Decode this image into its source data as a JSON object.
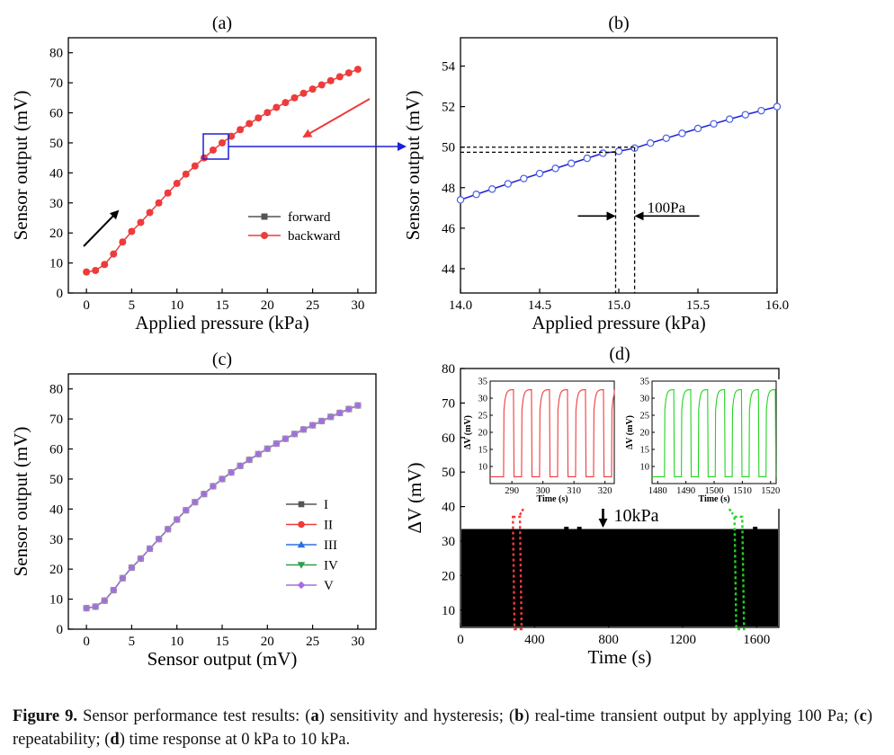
{
  "caption": {
    "label": "Figure 9.",
    "intro": " Sensor performance test results: (",
    "a_letter": "a",
    "a_text": ") sensitivity and hysteresis; (",
    "b_letter": "b",
    "b_text": ") real-time transient output by applying 100 Pa; (",
    "c_letter": "c",
    "c_text": ") repeatability; (",
    "d_letter": "d",
    "d_text": ") time response at 0 kPa to 10 kPa."
  },
  "colors": {
    "red": "#ee3b3b",
    "dark": "#4a4a4a",
    "blue": "#1f1fd8",
    "circle_blue": "#4a5fe0",
    "purple": "#a36fe0",
    "green": "#22d322",
    "black": "#000000"
  },
  "chart_data": [
    {
      "panel": "(a)",
      "type": "line",
      "xlabel": "Applied pressure (kPa)",
      "ylabel": "Sensor output (mV)",
      "xlim": [
        -2,
        32
      ],
      "ylim": [
        0,
        85
      ],
      "xticks": [
        0,
        5,
        10,
        15,
        20,
        25,
        30
      ],
      "yticks": [
        0,
        10,
        20,
        30,
        40,
        50,
        60,
        70,
        80
      ],
      "legend_position": "center-right",
      "series": [
        {
          "name": "forward",
          "marker": "square",
          "color": "#555555",
          "x": [
            0,
            1,
            2,
            3,
            4,
            5,
            6,
            7,
            8,
            9,
            10,
            11,
            12,
            13,
            14,
            15,
            16,
            17,
            18,
            19,
            20,
            21,
            22,
            23,
            24,
            25,
            26,
            27,
            28,
            29,
            30
          ],
          "y": [
            7,
            7.5,
            9.5,
            13,
            17,
            20.5,
            23.5,
            26.8,
            30,
            33.3,
            36.5,
            39.6,
            42.3,
            45,
            47.6,
            50,
            52.2,
            54.4,
            56.4,
            58.3,
            60.1,
            61.8,
            63.4,
            65,
            66.5,
            67.9,
            69.3,
            70.7,
            72,
            73.3,
            74.5
          ]
        },
        {
          "name": "backward",
          "marker": "circle",
          "color": "#ee3b3b",
          "x": [
            0,
            1,
            2,
            3,
            4,
            5,
            6,
            7,
            8,
            9,
            10,
            11,
            12,
            13,
            14,
            15,
            16,
            17,
            18,
            19,
            20,
            21,
            22,
            23,
            24,
            25,
            26,
            27,
            28,
            29,
            30
          ],
          "y": [
            7,
            7.5,
            9.5,
            13,
            17,
            20.5,
            23.5,
            26.8,
            30,
            33.3,
            36.5,
            39.6,
            42.3,
            45,
            47.6,
            50,
            52.2,
            54.4,
            56.4,
            58.3,
            60.1,
            61.8,
            63.4,
            65,
            66.5,
            67.9,
            69.3,
            70.7,
            72,
            73.3,
            74.5
          ]
        }
      ],
      "annotations": []
    },
    {
      "panel": "(b)",
      "type": "line",
      "xlabel": "Applied pressure (kPa)",
      "ylabel": "Sensor output (mV)",
      "xlim": [
        14.0,
        16.0
      ],
      "ylim": [
        42.8,
        55.4
      ],
      "xticks": [
        14.0,
        14.5,
        15.0,
        15.5,
        16.0
      ],
      "xtick_labels": [
        "14.0",
        "14.5",
        "15.0",
        "15.5",
        "16.0"
      ],
      "yticks": [
        44,
        46,
        48,
        50,
        52,
        54
      ],
      "series": [
        {
          "name": "",
          "marker": "open-circle",
          "color": "#1f1fd8",
          "x": [
            14.0,
            14.1,
            14.2,
            14.3,
            14.4,
            14.5,
            14.6,
            14.7,
            14.8,
            14.9,
            15.0,
            15.1,
            15.2,
            15.3,
            15.4,
            15.5,
            15.6,
            15.7,
            15.8,
            15.9,
            16.0
          ],
          "y": [
            47.4,
            47.67,
            47.93,
            48.19,
            48.45,
            48.7,
            48.95,
            49.2,
            49.45,
            49.7,
            49.8,
            49.95,
            50.2,
            50.44,
            50.68,
            50.92,
            51.15,
            51.38,
            51.6,
            51.8,
            52.0
          ]
        }
      ],
      "annotation": "100Pa"
    },
    {
      "panel": "(c)",
      "type": "line",
      "xlabel": "Sensor output (mV)",
      "ylabel": "Sensor output (mV)",
      "xlim": [
        -2,
        32
      ],
      "ylim": [
        0,
        85
      ],
      "xticks": [
        0,
        5,
        10,
        15,
        20,
        25,
        30
      ],
      "yticks": [
        0,
        10,
        20,
        30,
        40,
        50,
        60,
        70,
        80
      ],
      "legend_position": "center-right",
      "series": [
        {
          "name": "I",
          "marker": "square",
          "color": "#555555"
        },
        {
          "name": "II",
          "marker": "circle",
          "color": "#ee3b3b"
        },
        {
          "name": "III",
          "marker": "triangle-up",
          "color": "#2e6fe0"
        },
        {
          "name": "IV",
          "marker": "triangle-down",
          "color": "#2e9e4a"
        },
        {
          "name": "V",
          "marker": "diamond",
          "color": "#a36fe0"
        }
      ],
      "x": [
        0,
        1,
        2,
        3,
        4,
        5,
        6,
        7,
        8,
        9,
        10,
        11,
        12,
        13,
        14,
        15,
        16,
        17,
        18,
        19,
        20,
        21,
        22,
        23,
        24,
        25,
        26,
        27,
        28,
        29,
        30
      ],
      "y": [
        7,
        7.5,
        9.5,
        13,
        17,
        20.5,
        23.5,
        26.8,
        30,
        33.3,
        36.5,
        39.6,
        42.3,
        45,
        47.6,
        50,
        52.2,
        54.4,
        56.4,
        58.3,
        60.1,
        61.8,
        63.4,
        65,
        66.5,
        67.9,
        69.3,
        70.7,
        72,
        73.3,
        74.5
      ]
    },
    {
      "panel": "(d)",
      "type": "line",
      "xlabel": "Time (s)",
      "ylabel": "ΔV (mV)",
      "xlim": [
        0,
        1720
      ],
      "ylim": [
        5,
        80
      ],
      "xticks": [
        0,
        400,
        800,
        1200,
        1600
      ],
      "yticks": [
        10,
        20,
        30,
        40,
        50,
        60,
        70,
        80
      ],
      "description_values": {
        "low": 7,
        "high": 33.5
      },
      "annotation": "10kPa",
      "annotation_x": 770,
      "insets": [
        {
          "color": "#ee3b3b",
          "xlabel": "Time (s)",
          "ylabel": "ΔV (mV)",
          "xlim": [
            283,
            323
          ],
          "ylim": [
            5,
            35
          ],
          "xticks": [
            290,
            300,
            310,
            320
          ],
          "yticks": [
            10,
            15,
            20,
            25,
            30,
            35
          ],
          "period": 5.8,
          "start": 285,
          "low": 7,
          "high": 32.5
        },
        {
          "color": "#22d322",
          "xlabel": "Time (s)",
          "ylabel": "ΔV (mV)",
          "xlim": [
            1478,
            1522
          ],
          "ylim": [
            5,
            35
          ],
          "xticks": [
            1480,
            1490,
            1500,
            1510,
            1520
          ],
          "yticks": [
            10,
            15,
            20,
            25,
            30,
            35
          ],
          "period": 6.0,
          "start": 1480,
          "low": 7,
          "high": 32.5
        }
      ]
    }
  ]
}
